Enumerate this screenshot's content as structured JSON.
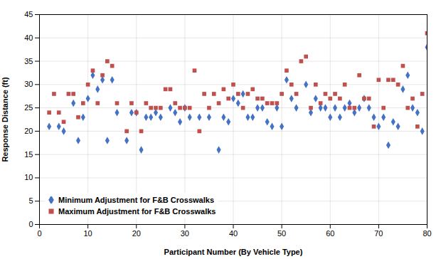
{
  "chart_data": {
    "type": "scatter",
    "xlabel": "Participant Number (By Vehicle Type)",
    "ylabel": "Response Distance (ft)",
    "xlim": [
      0,
      80
    ],
    "ylim": [
      0,
      45
    ],
    "xticks": [
      0,
      10,
      20,
      30,
      40,
      50,
      60,
      70,
      80
    ],
    "yticks": [
      0,
      5,
      10,
      15,
      20,
      25,
      30,
      35,
      40,
      45
    ],
    "grid": true,
    "legend": "lower left",
    "series": [
      {
        "name": "Minimum Adjustment for F&B Crosswalks",
        "color": "#4472C4",
        "marker": "diamond",
        "x": [
          2,
          4,
          5,
          7,
          8,
          9,
          10,
          11,
          12,
          13,
          14,
          15,
          16,
          18,
          19,
          20,
          21,
          22,
          23,
          24,
          25,
          27,
          28,
          29,
          30,
          31,
          33,
          35,
          37,
          38,
          39,
          40,
          41,
          42,
          43,
          44,
          45,
          46,
          47,
          48,
          49,
          50,
          51,
          52,
          53,
          55,
          56,
          57,
          58,
          59,
          60,
          61,
          62,
          63,
          64,
          65,
          66,
          67,
          68,
          69,
          70,
          71,
          72,
          73,
          74,
          75,
          76,
          77,
          78,
          79,
          80
        ],
        "values": [
          21,
          21,
          20,
          26,
          18,
          23,
          27,
          32,
          29,
          31,
          18,
          31,
          24,
          18,
          24,
          24,
          16,
          23,
          23,
          24,
          23,
          25,
          24,
          22,
          25,
          23,
          23,
          23,
          16,
          23,
          22,
          27,
          26,
          28,
          23,
          23,
          25,
          25,
          22,
          21,
          25,
          21,
          31,
          27,
          25,
          30,
          24,
          27,
          25,
          25,
          23,
          25,
          23,
          25,
          26,
          24,
          25,
          27,
          25,
          23,
          21,
          23,
          17,
          22,
          21,
          29,
          32,
          25,
          24,
          20,
          38
        ]
      },
      {
        "name": "Maximum Adjustment for F&B Crosswalks",
        "color": "#C0504D",
        "marker": "square",
        "x": [
          2,
          3,
          4,
          5,
          6,
          7,
          8,
          9,
          10,
          11,
          12,
          13,
          14,
          15,
          16,
          18,
          19,
          20,
          21,
          22,
          23,
          24,
          25,
          26,
          27,
          28,
          29,
          30,
          31,
          32,
          33,
          34,
          35,
          36,
          37,
          38,
          39,
          40,
          41,
          42,
          43,
          44,
          45,
          46,
          47,
          48,
          49,
          50,
          51,
          52,
          53,
          54,
          55,
          56,
          57,
          58,
          59,
          60,
          61,
          62,
          63,
          64,
          65,
          66,
          67,
          68,
          69,
          70,
          71,
          72,
          73,
          74,
          75,
          76,
          77,
          78,
          79,
          80
        ],
        "values": [
          24,
          28,
          24,
          22,
          28,
          28,
          23,
          26,
          30,
          33,
          26,
          32,
          35,
          34,
          26,
          20,
          26,
          24,
          20,
          26,
          25,
          25,
          25,
          29,
          29,
          26,
          25,
          25,
          25,
          33,
          20,
          28,
          25,
          28,
          26,
          29,
          27,
          30,
          28,
          25,
          28,
          29,
          27,
          27,
          26,
          26,
          26,
          28,
          33,
          30,
          28,
          35,
          36,
          25,
          30,
          26,
          28,
          27,
          28,
          27,
          30,
          25,
          25,
          32,
          27,
          27,
          21,
          31,
          25,
          31,
          31,
          30,
          34,
          25,
          27,
          21,
          28,
          41
        ]
      }
    ]
  }
}
